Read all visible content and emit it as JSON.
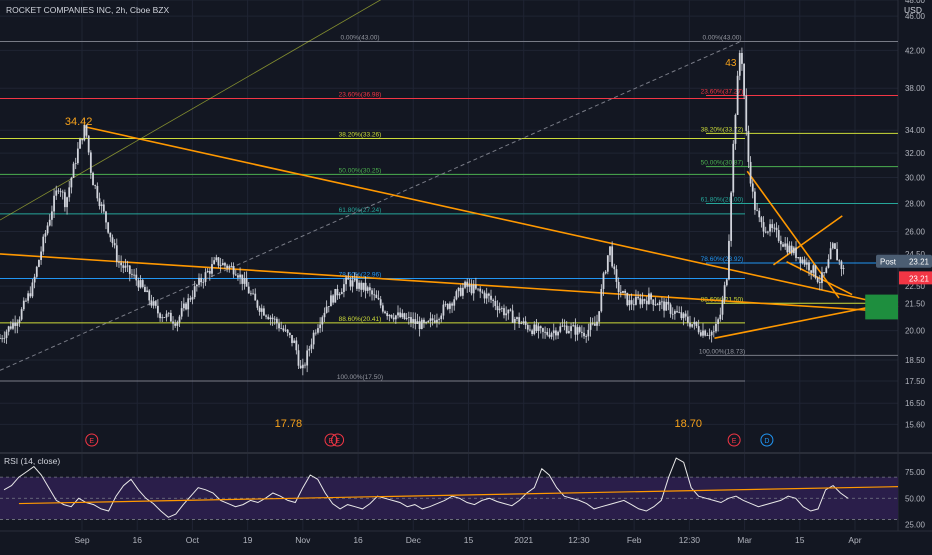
{
  "header": {
    "symbol_title": "ROCKET COMPANIES INC, 2h, Cboe BZX",
    "currency": "USD"
  },
  "colors": {
    "background": "#131722",
    "grid": "#1f2433",
    "axis_text": "#b2b5be",
    "candle": "#d1d4dc",
    "trendline": "#ff9800",
    "fib_level": "#787b86",
    "fib_red": "#f23645",
    "fib_yellow": "#cddc39",
    "fib_green": "#4caf50",
    "fib_teal": "#26a69a",
    "fib_blue": "#2196f3",
    "fib_label_gray": "#9598a1",
    "annotation_orange": "#f7a21b",
    "rsi_line": "#e8e8e8",
    "rsi_band": "#2a1e4a",
    "target_box": "#1e8e3e",
    "price_tag": "#f23645",
    "post_tag": "#4b5d72"
  },
  "icons": {
    "earnings_marker": "circle-e-icon",
    "dividend_marker": "circle-d-icon"
  },
  "chart_data": [
    {
      "type": "line",
      "title": "ROCKET COMPANIES INC, 2h, Cboe BZX",
      "ylim": [
        14.5,
        48.0
      ],
      "y_axis_ticks": [
        "48.00",
        "46.00",
        "42.00",
        "38.00",
        "34.00",
        "32.00",
        "30.00",
        "28.00",
        "26.00",
        "24.50",
        "22.50",
        "21.50",
        "20.00",
        "18.50",
        "17.50",
        "16.50",
        "15.60"
      ],
      "x_axis_ticks": [
        "Sep",
        "16",
        "Oct",
        "19",
        "Nov",
        "16",
        "Dec",
        "15",
        "2021",
        "12:30",
        "Feb",
        "12:30",
        "Mar",
        "15",
        "Apr"
      ],
      "price_path": [
        {
          "t": 0,
          "v": 19.6
        },
        {
          "t": 3,
          "v": 20.8
        },
        {
          "t": 5,
          "v": 22.5
        },
        {
          "t": 7,
          "v": 26.0
        },
        {
          "t": 9,
          "v": 29.5
        },
        {
          "t": 10,
          "v": 28.0
        },
        {
          "t": 12,
          "v": 32.5
        },
        {
          "t": 13,
          "v": 34.4
        },
        {
          "t": 14,
          "v": 30.0
        },
        {
          "t": 16,
          "v": 27.0
        },
        {
          "t": 18,
          "v": 24.0
        },
        {
          "t": 21,
          "v": 22.8
        },
        {
          "t": 24,
          "v": 21.0
        },
        {
          "t": 27,
          "v": 20.5
        },
        {
          "t": 30,
          "v": 22.5
        },
        {
          "t": 33,
          "v": 24.0
        },
        {
          "t": 36,
          "v": 23.5
        },
        {
          "t": 39,
          "v": 21.5
        },
        {
          "t": 42,
          "v": 20.5
        },
        {
          "t": 45,
          "v": 19.3
        },
        {
          "t": 46,
          "v": 17.8
        },
        {
          "t": 48,
          "v": 20.0
        },
        {
          "t": 50,
          "v": 21.5
        },
        {
          "t": 53,
          "v": 22.8
        },
        {
          "t": 56,
          "v": 22.3
        },
        {
          "t": 59,
          "v": 21.0
        },
        {
          "t": 62,
          "v": 20.6
        },
        {
          "t": 65,
          "v": 20.2
        },
        {
          "t": 68,
          "v": 21.3
        },
        {
          "t": 71,
          "v": 22.5
        },
        {
          "t": 74,
          "v": 22.0
        },
        {
          "t": 77,
          "v": 21.0
        },
        {
          "t": 80,
          "v": 20.3
        },
        {
          "t": 83,
          "v": 19.8
        },
        {
          "t": 86,
          "v": 20.2
        },
        {
          "t": 89,
          "v": 19.9
        },
        {
          "t": 91,
          "v": 20.3
        },
        {
          "t": 92,
          "v": 22.8
        },
        {
          "t": 93,
          "v": 25.0
        },
        {
          "t": 94,
          "v": 22.5
        },
        {
          "t": 96,
          "v": 21.5
        },
        {
          "t": 99,
          "v": 21.8
        },
        {
          "t": 102,
          "v": 21.2
        },
        {
          "t": 105,
          "v": 20.5
        },
        {
          "t": 107,
          "v": 20.0
        },
        {
          "t": 109,
          "v": 19.9
        },
        {
          "t": 110,
          "v": 21.0
        },
        {
          "t": 111,
          "v": 23.5
        },
        {
          "t": 112,
          "v": 34.0
        },
        {
          "t": 113,
          "v": 43.0
        },
        {
          "t": 114,
          "v": 32.0
        },
        {
          "t": 115,
          "v": 28.0
        },
        {
          "t": 116,
          "v": 26.5
        },
        {
          "t": 118,
          "v": 26.0
        },
        {
          "t": 120,
          "v": 25.0
        },
        {
          "t": 122,
          "v": 24.3
        },
        {
          "t": 124,
          "v": 23.5
        },
        {
          "t": 125,
          "v": 22.8
        },
        {
          "t": 126,
          "v": 23.3
        },
        {
          "t": 127,
          "v": 25.0
        },
        {
          "t": 128,
          "v": 24.0
        },
        {
          "t": 129,
          "v": 23.21
        }
      ],
      "t_max": 137,
      "price_annotations": [
        {
          "text": "34.42",
          "t": 12,
          "v": 34.42
        },
        {
          "text": "17.78",
          "t": 44,
          "v": 17.78
        },
        {
          "text": "18.70",
          "t": 105,
          "v": 18.7
        },
        {
          "text": "43",
          "t": 111.5,
          "v": 43.0
        }
      ],
      "fib_left": [
        {
          "label": "0.00%(43.00)",
          "price": 43.0,
          "color_key": "fib_level"
        },
        {
          "label": "23.60%(36.98)",
          "price": 36.98,
          "color_key": "fib_red"
        },
        {
          "label": "38.20%(33.26)",
          "price": 33.26,
          "color_key": "fib_yellow"
        },
        {
          "label": "50.00%(30.25)",
          "price": 30.25,
          "color_key": "fib_green"
        },
        {
          "label": "61.80%(27.24)",
          "price": 27.24,
          "color_key": "fib_teal"
        },
        {
          "label": "78.60%(22.96)",
          "price": 22.96,
          "color_key": "fib_blue"
        },
        {
          "label": "88.60%(20.41)",
          "price": 20.41,
          "color_key": "fib_yellow"
        },
        {
          "label": "100.00%(17.50)",
          "price": 17.5,
          "color_key": "fib_level"
        }
      ],
      "fib_right": [
        {
          "label": "0.00%(43.00)",
          "price": 43.0,
          "color_key": "fib_level"
        },
        {
          "label": "23.60%(37.27)",
          "price": 37.27,
          "color_key": "fib_red"
        },
        {
          "label": "38.20%(33.72)",
          "price": 33.72,
          "color_key": "fib_yellow"
        },
        {
          "label": "50.00%(30.87)",
          "price": 30.87,
          "color_key": "fib_green"
        },
        {
          "label": "61.80%(28.00)",
          "price": 28.0,
          "color_key": "fib_teal"
        },
        {
          "label": "78.60%(23.92)",
          "price": 23.92,
          "color_key": "fib_blue"
        },
        {
          "label": "88.60%(21.50)",
          "price": 21.5,
          "color_key": "fib_yellow"
        },
        {
          "label": "100.00%(18.73)",
          "price": 18.73,
          "color_key": "fib_level"
        }
      ],
      "trendlines": [
        {
          "t1": 13,
          "v1": 34.3,
          "t2": 137,
          "v2": 21.3,
          "color_key": "trendline"
        },
        {
          "t1": 0,
          "v1": 24.5,
          "t2": 137,
          "v2": 21.0,
          "color_key": "trendline"
        },
        {
          "t1": 109,
          "v1": 19.6,
          "t2": 137,
          "v2": 21.6,
          "color_key": "trendline"
        },
        {
          "t1": 114,
          "v1": 30.5,
          "t2": 128,
          "v2": 21.8,
          "color_key": "trendline"
        },
        {
          "t1": 118,
          "v1": 23.8,
          "t2": 128.5,
          "v2": 27.1,
          "color_key": "trendline"
        },
        {
          "t1": 120,
          "v1": 24.0,
          "t2": 130,
          "v2": 22.0,
          "color_key": "trendline"
        },
        {
          "t1": 0,
          "v1": 26.8,
          "t2": 66,
          "v2": 52.0,
          "color_key": "fib_yellow"
        }
      ],
      "dashed_line": {
        "t1": 0,
        "v1": 18.0,
        "t2": 113,
        "v2": 43.0
      },
      "target_box": {
        "t1": 132,
        "t2": 137,
        "v_low": 20.6,
        "v_high": 22.0
      },
      "event_markers": [
        {
          "label": "E",
          "t": 14,
          "kind": "earnings"
        },
        {
          "label": "E",
          "t": 50.5,
          "kind": "earnings"
        },
        {
          "label": "E",
          "t": 51.5,
          "kind": "earnings"
        },
        {
          "label": "E",
          "t": 112,
          "kind": "earnings"
        },
        {
          "label": "D",
          "t": 117,
          "kind": "dividend"
        }
      ],
      "last_price_tag": "23.21",
      "post_tag": {
        "label": "Post",
        "price": "23.21"
      }
    },
    {
      "type": "line",
      "title": "RSI (14, close)",
      "ylim": [
        20,
        90
      ],
      "y_axis_ticks": [
        "75.00",
        "50.00",
        "25.00"
      ],
      "band": [
        30,
        70
      ],
      "values": [
        58,
        62,
        70,
        75,
        80,
        72,
        60,
        48,
        44,
        42,
        50,
        46,
        44,
        40,
        38,
        52,
        62,
        68,
        58,
        50,
        45,
        38,
        32,
        35,
        44,
        52,
        60,
        58,
        55,
        48,
        45,
        42,
        44,
        48,
        46,
        50,
        55,
        52,
        48,
        46,
        60,
        72,
        68,
        55,
        45,
        40,
        44,
        42,
        40,
        45,
        52,
        50,
        48,
        46,
        42,
        44,
        40,
        42,
        45,
        48,
        52,
        50,
        46,
        44,
        48,
        50,
        47,
        45,
        43,
        48,
        55,
        60,
        78,
        72,
        60,
        52,
        50,
        48,
        45,
        40,
        42,
        44,
        46,
        48,
        44,
        40,
        38,
        42,
        48,
        70,
        88,
        84,
        60,
        52,
        50,
        48,
        46,
        50,
        52,
        48,
        45,
        42,
        44,
        46,
        48,
        52,
        50,
        42,
        38,
        40,
        58,
        62,
        55,
        50
      ],
      "trendline": {
        "i1": 2,
        "v1": 45,
        "i2": 113,
        "v2": 61
      }
    }
  ]
}
